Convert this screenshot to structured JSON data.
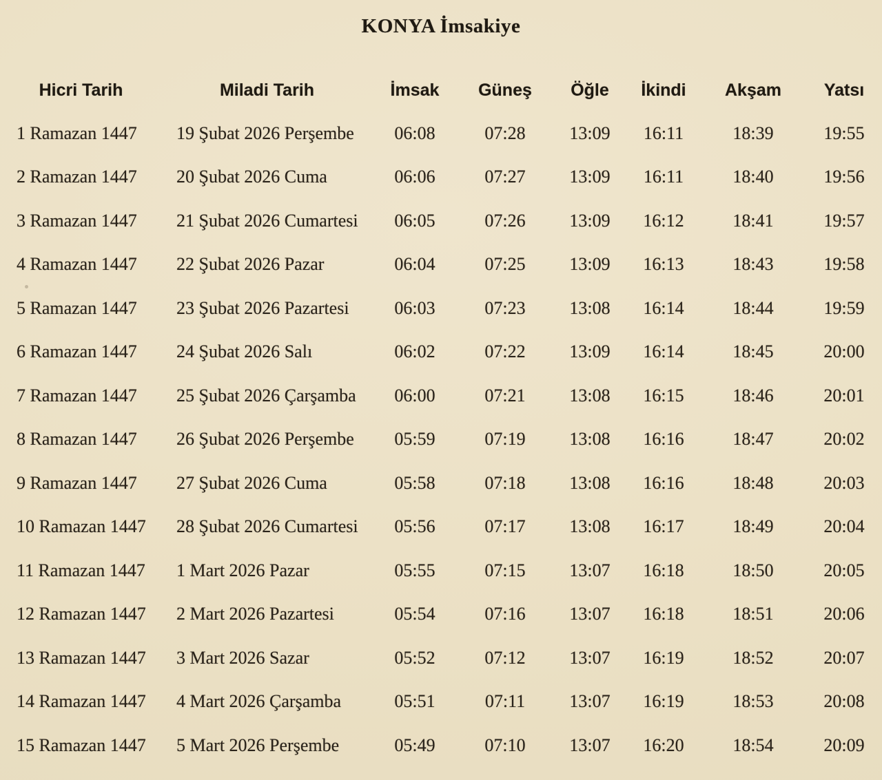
{
  "title": "KONYA İmsakiye",
  "colors": {
    "page_background": "#ece1c6",
    "text": "#2a231a",
    "heading_text": "#1f1a12"
  },
  "table": {
    "headers": [
      "Hicri Tarih",
      "Miladi Tarih",
      "İmsak",
      "Güneş",
      "Öğle",
      "İkindi",
      "Akşam",
      "Yatsı"
    ],
    "rows": [
      [
        "1 Ramazan 1447",
        "19 Şubat 2026 Perşembe",
        "06:08",
        "07:28",
        "13:09",
        "16:11",
        "18:39",
        "19:55"
      ],
      [
        "2 Ramazan 1447",
        "20 Şubat 2026 Cuma",
        "06:06",
        "07:27",
        "13:09",
        "16:11",
        "18:40",
        "19:56"
      ],
      [
        "3 Ramazan 1447",
        "21 Şubat 2026 Cumartesi",
        "06:05",
        "07:26",
        "13:09",
        "16:12",
        "18:41",
        "19:57"
      ],
      [
        "4 Ramazan 1447",
        "22 Şubat 2026 Pazar",
        "06:04",
        "07:25",
        "13:09",
        "16:13",
        "18:43",
        "19:58"
      ],
      [
        "5 Ramazan 1447",
        "23 Şubat 2026 Pazartesi",
        "06:03",
        "07:23",
        "13:08",
        "16:14",
        "18:44",
        "19:59"
      ],
      [
        "6 Ramazan 1447",
        "24 Şubat 2026 Salı",
        "06:02",
        "07:22",
        "13:09",
        "16:14",
        "18:45",
        "20:00"
      ],
      [
        "7 Ramazan 1447",
        "25 Şubat 2026 Çarşamba",
        "06:00",
        "07:21",
        "13:08",
        "16:15",
        "18:46",
        "20:01"
      ],
      [
        "8 Ramazan 1447",
        "26 Şubat 2026 Perşembe",
        "05:59",
        "07:19",
        "13:08",
        "16:16",
        "18:47",
        "20:02"
      ],
      [
        "9 Ramazan 1447",
        "27 Şubat 2026 Cuma",
        "05:58",
        "07:18",
        "13:08",
        "16:16",
        "18:48",
        "20:03"
      ],
      [
        "10 Ramazan 1447",
        "28 Şubat 2026 Cumartesi",
        "05:56",
        "07:17",
        "13:08",
        "16:17",
        "18:49",
        "20:04"
      ],
      [
        "11 Ramazan 1447",
        "1 Mart 2026 Pazar",
        "05:55",
        "07:15",
        "13:07",
        "16:18",
        "18:50",
        "20:05"
      ],
      [
        "12 Ramazan 1447",
        "2 Mart 2026 Pazartesi",
        "05:54",
        "07:16",
        "13:07",
        "16:18",
        "18:51",
        "20:06"
      ],
      [
        "13 Ramazan 1447",
        "3 Mart 2026 Sazar",
        "05:52",
        "07:12",
        "13:07",
        "16:19",
        "18:52",
        "20:07"
      ],
      [
        "14 Ramazan 1447",
        "4 Mart 2026 Çarşamba",
        "05:51",
        "07:11",
        "13:07",
        "16:19",
        "18:53",
        "20:08"
      ],
      [
        "15 Ramazan 1447",
        "5 Mart 2026 Perşembe",
        "05:49",
        "07:10",
        "13:07",
        "16:20",
        "18:54",
        "20:09"
      ]
    ]
  }
}
